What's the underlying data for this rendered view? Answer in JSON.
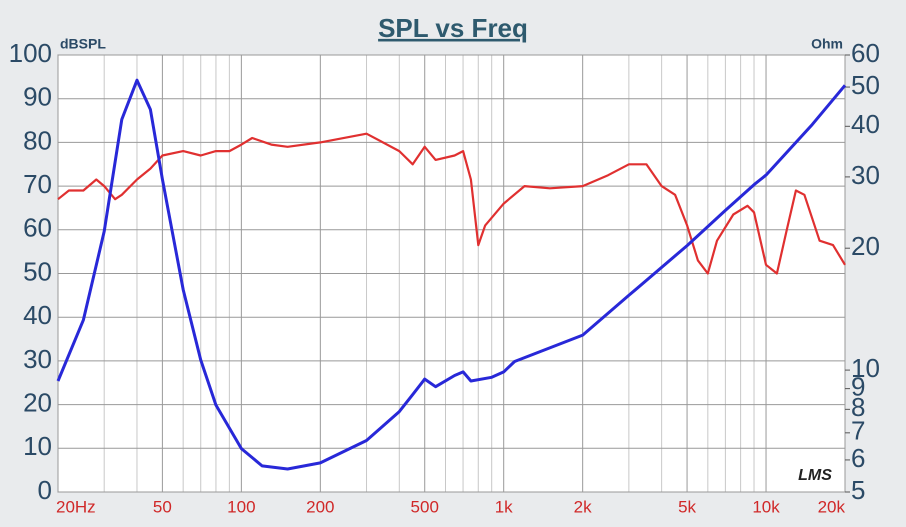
{
  "chart_data": {
    "type": "line",
    "title": "SPL vs Freq",
    "y_label": "dBSPL",
    "y2_label": "Ohm",
    "watermark": "LMS",
    "xscale": "log",
    "xlim": [
      20,
      20000
    ],
    "xticks": [
      {
        "value": 20,
        "label": "20Hz"
      },
      50,
      100,
      200,
      500,
      {
        "value": 1000,
        "label": "1k"
      },
      {
        "value": 2000,
        "label": "2k"
      },
      {
        "value": 5000,
        "label": "5k"
      },
      {
        "value": 10000,
        "label": "10k"
      },
      {
        "value": 20000,
        "label": "20k"
      }
    ],
    "xminor": [
      30,
      40,
      60,
      70,
      80,
      90,
      300,
      400,
      600,
      700,
      800,
      900,
      3000,
      4000,
      6000,
      7000,
      8000,
      9000
    ],
    "ylim": [
      0,
      100
    ],
    "yticks": [
      0,
      10,
      20,
      30,
      40,
      50,
      60,
      70,
      80,
      90,
      100
    ],
    "y2scale": "log",
    "y2lim": [
      5,
      60
    ],
    "y2ticks": [
      5,
      6,
      7,
      8,
      9,
      10,
      20,
      30,
      40,
      50,
      60
    ],
    "grid": true,
    "series": [
      {
        "color": "#e03030",
        "x": [
          20,
          22,
          25,
          28,
          30,
          33,
          35,
          40,
          45,
          50,
          60,
          70,
          80,
          90,
          100,
          110,
          130,
          150,
          200,
          300,
          400,
          450,
          500,
          550,
          650,
          700,
          750,
          800,
          850,
          1000,
          1200,
          1500,
          2000,
          2500,
          3000,
          3500,
          4000,
          4500,
          5000,
          5500,
          6000,
          6500,
          7500,
          8500,
          9000,
          10000,
          11000,
          12000,
          13000,
          14000,
          16000,
          18000,
          20000
        ],
        "values": [
          67,
          69,
          69,
          71.5,
          70,
          67,
          68,
          71.5,
          74,
          77,
          78,
          77,
          78,
          78,
          79.5,
          81,
          79.5,
          79,
          80,
          82,
          78,
          75,
          79,
          76,
          77,
          78,
          71.5,
          56.5,
          61,
          66,
          70,
          69.5,
          70,
          72.5,
          75,
          75,
          70,
          68,
          61,
          53,
          50,
          57.5,
          63.5,
          65.5,
          64,
          52,
          50,
          60,
          69,
          68,
          57.5,
          56.5,
          52
        ]
      },
      {
        "color": "#2828d8",
        "axis": "y2",
        "x": [
          20,
          25,
          30,
          35,
          40,
          45,
          50,
          60,
          70,
          80,
          100,
          120,
          150,
          200,
          300,
          400,
          450,
          500,
          550,
          650,
          700,
          750,
          900,
          1000,
          1100,
          2000,
          3000,
          5000,
          7000,
          9000,
          10000,
          15000,
          20000
        ],
        "values": [
          9.4,
          13.3,
          22,
          41.6,
          52,
          44,
          29.6,
          15.8,
          10.6,
          8.2,
          6.4,
          5.8,
          5.7,
          5.9,
          6.7,
          7.9,
          8.7,
          9.5,
          9.1,
          9.7,
          9.9,
          9.4,
          9.6,
          9.9,
          10.5,
          12.2,
          15.3,
          20.3,
          24.8,
          28.7,
          30.3,
          40.4,
          50.5
        ]
      }
    ]
  }
}
